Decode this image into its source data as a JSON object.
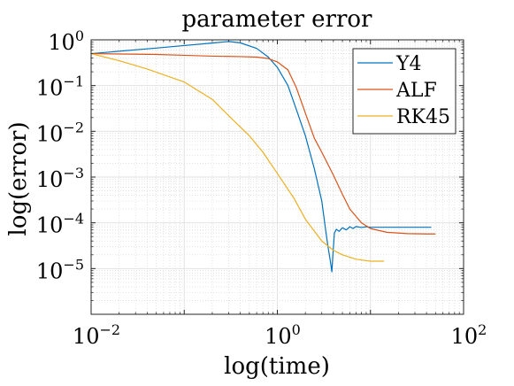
{
  "chart_data": {
    "type": "line",
    "title": "parameter error",
    "xlabel": "log(time)",
    "ylabel": "log(error)",
    "xscale": "log",
    "yscale": "log",
    "xlim": [
      0.01,
      100
    ],
    "ylim": [
      1e-06,
      1
    ],
    "grid": true,
    "minor_grid": true,
    "legend_position": "top-right",
    "x_ticks": [
      {
        "value": 0.01,
        "base": "10",
        "exp": "−2"
      },
      {
        "value": 1,
        "base": "10",
        "exp": "0"
      },
      {
        "value": 100,
        "base": "10",
        "exp": "2"
      }
    ],
    "y_ticks": [
      {
        "value": 1,
        "base": "10",
        "exp": "0"
      },
      {
        "value": 0.1,
        "base": "10",
        "exp": "−1"
      },
      {
        "value": 0.01,
        "base": "10",
        "exp": "−2"
      },
      {
        "value": 0.001,
        "base": "10",
        "exp": "−3"
      },
      {
        "value": 0.0001,
        "base": "10",
        "exp": "−4"
      },
      {
        "value": 1e-05,
        "base": "10",
        "exp": "−5"
      }
    ],
    "series": [
      {
        "name": "Y4",
        "color": "#0072BD",
        "points": [
          [
            0.01,
            0.5
          ],
          [
            0.05,
            0.66
          ],
          [
            0.1,
            0.75
          ],
          [
            0.2,
            0.85
          ],
          [
            0.3,
            0.92
          ],
          [
            0.4,
            0.86
          ],
          [
            0.6,
            0.65
          ],
          [
            0.8,
            0.42
          ],
          [
            1.0,
            0.25
          ],
          [
            1.3,
            0.1
          ],
          [
            1.6,
            0.03
          ],
          [
            2.0,
            0.008
          ],
          [
            2.5,
            0.0015
          ],
          [
            3.0,
            0.0003
          ],
          [
            3.3,
            7e-05
          ],
          [
            3.5,
            3e-05
          ],
          [
            3.7,
            1.5e-05
          ],
          [
            3.85,
            8.5e-06
          ],
          [
            3.95,
            2e-05
          ],
          [
            4.1,
            6e-05
          ],
          [
            4.3,
            7.2e-05
          ],
          [
            4.6,
            6.5e-05
          ],
          [
            5.0,
            7.8e-05
          ],
          [
            5.5,
            7e-05
          ],
          [
            6.0,
            8.2e-05
          ],
          [
            6.5,
            7.5e-05
          ],
          [
            7.0,
            8.3e-05
          ],
          [
            8.0,
            7.9e-05
          ],
          [
            9.0,
            8.2e-05
          ],
          [
            10,
            8e-05
          ],
          [
            15,
            8e-05
          ],
          [
            25,
            8e-05
          ],
          [
            45,
            8e-05
          ]
        ]
      },
      {
        "name": "ALF",
        "color": "#D95319",
        "points": [
          [
            0.01,
            0.5
          ],
          [
            0.05,
            0.48
          ],
          [
            0.1,
            0.46
          ],
          [
            0.2,
            0.44
          ],
          [
            0.4,
            0.43
          ],
          [
            0.6,
            0.42
          ],
          [
            0.8,
            0.39
          ],
          [
            1.0,
            0.33
          ],
          [
            1.3,
            0.22
          ],
          [
            1.6,
            0.09
          ],
          [
            2.0,
            0.025
          ],
          [
            2.5,
            0.007
          ],
          [
            3.0,
            0.0035
          ],
          [
            4.0,
            0.0011
          ],
          [
            5.0,
            0.00042
          ],
          [
            6.0,
            0.0002
          ],
          [
            8.0,
            0.0001
          ],
          [
            10,
            7.5e-05
          ],
          [
            15,
            6.2e-05
          ],
          [
            25,
            5.8e-05
          ],
          [
            40,
            5.7e-05
          ],
          [
            50,
            5.7e-05
          ]
        ]
      },
      {
        "name": "RK45",
        "color": "#EDB120",
        "points": [
          [
            0.01,
            0.5
          ],
          [
            0.02,
            0.35
          ],
          [
            0.04,
            0.23
          ],
          [
            0.08,
            0.14
          ],
          [
            0.1,
            0.12
          ],
          [
            0.2,
            0.05
          ],
          [
            0.3,
            0.022
          ],
          [
            0.5,
            0.008
          ],
          [
            0.7,
            0.0035
          ],
          [
            1.0,
            0.0012
          ],
          [
            1.5,
            0.00035
          ],
          [
            2.0,
            0.00012
          ],
          [
            3.0,
            4e-05
          ],
          [
            4.0,
            2.5e-05
          ],
          [
            5.0,
            2e-05
          ],
          [
            7.0,
            1.6e-05
          ],
          [
            10,
            1.45e-05
          ],
          [
            14,
            1.45e-05
          ]
        ]
      }
    ]
  }
}
